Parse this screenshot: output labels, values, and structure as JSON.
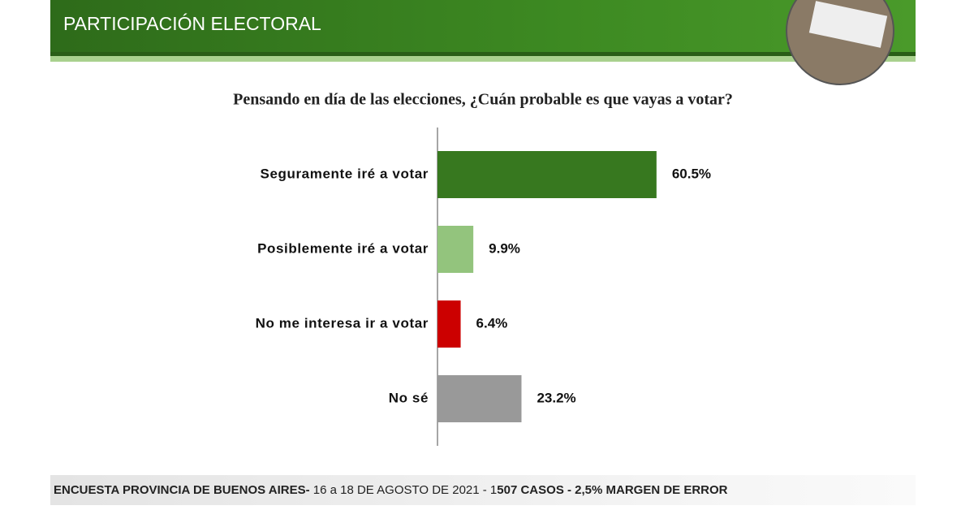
{
  "header": {
    "title": "PARTICIPACIÓN ELECTORAL"
  },
  "chart_data": {
    "type": "hbar",
    "title": "Pensando en día de las elecciones, ¿Cuán probable es que vayas a votar?",
    "categories": [
      "Seguramente iré a votar",
      "Posiblemente iré a votar",
      "No me interesa ir a votar",
      "No sé"
    ],
    "values": [
      60.5,
      9.9,
      6.4,
      23.2
    ],
    "value_labels": [
      "60.5%",
      "9.9%",
      "6.4%",
      "23.2%"
    ],
    "colors": [
      "#37781f",
      "#93c47d",
      "#cc0000",
      "#999999"
    ]
  },
  "footer": {
    "parts": [
      {
        "text": "ENCUESTA PROVINCIA DE BUENOS AIRES-",
        "bold": true
      },
      {
        "text": " 16 a 18 DE AGOSTO DE 2021 - 1",
        "bold": false
      },
      {
        "text": "507 CASOS - 2,5% MARGEN DE ERROR",
        "bold": true
      }
    ]
  }
}
